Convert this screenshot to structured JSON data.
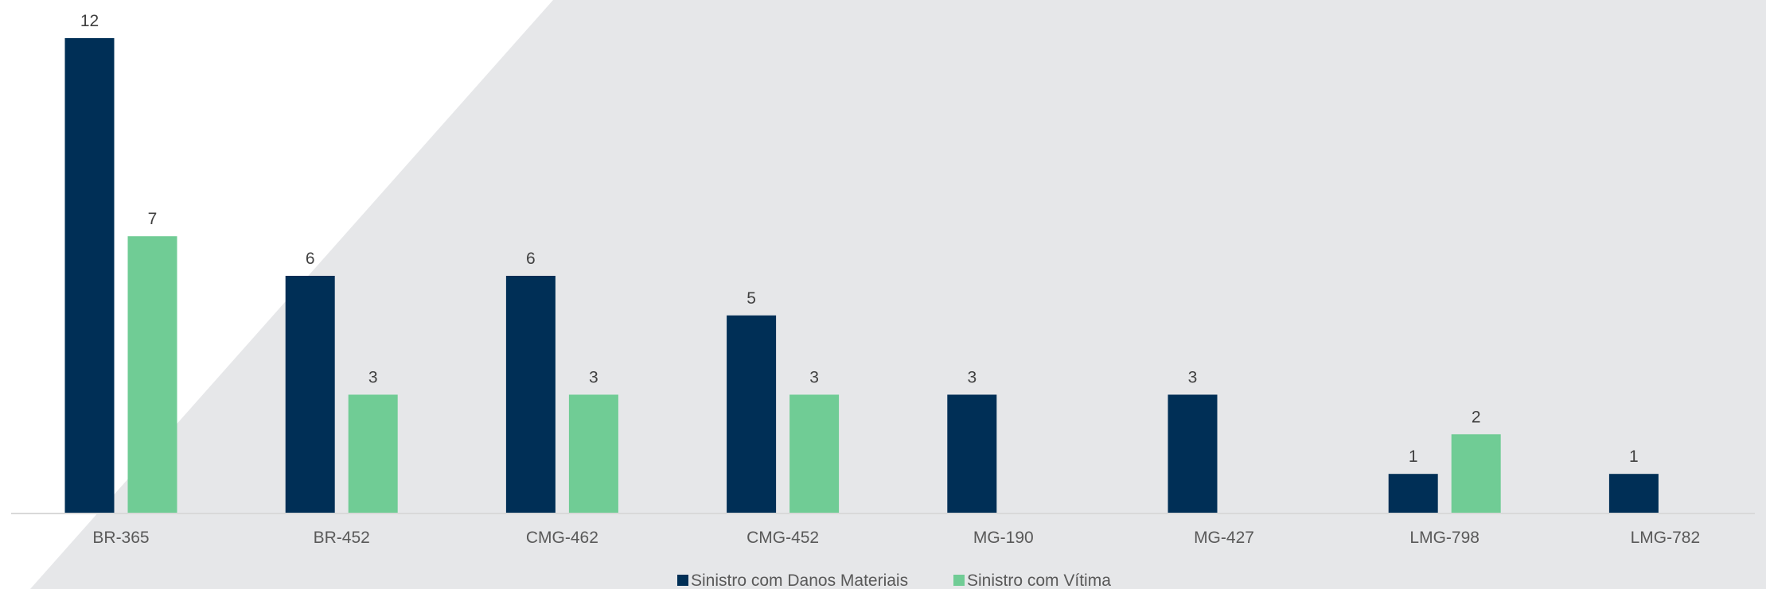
{
  "chart_data": {
    "type": "bar",
    "categories": [
      "BR-365",
      "BR-452",
      "CMG-462",
      "CMG-452",
      "MG-190",
      "MG-427",
      "LMG-798",
      "LMG-782"
    ],
    "series": [
      {
        "name": "Sinistro com Danos Materiais",
        "color": "#002f56",
        "values": [
          12,
          6,
          6,
          5,
          3,
          3,
          1,
          1
        ]
      },
      {
        "name": "Sinistro com Vítima",
        "color": "#70cc95",
        "values": [
          7,
          3,
          3,
          3,
          null,
          null,
          2,
          null
        ]
      }
    ],
    "title": "",
    "xlabel": "",
    "ylabel": "",
    "ylim": [
      0,
      12
    ],
    "grid": false,
    "legend": "bottom-center",
    "data_labels": true,
    "colors": {
      "background": "#ffffff",
      "backdrop": "#e6e7e9",
      "axis": "#d9d9d9"
    }
  }
}
